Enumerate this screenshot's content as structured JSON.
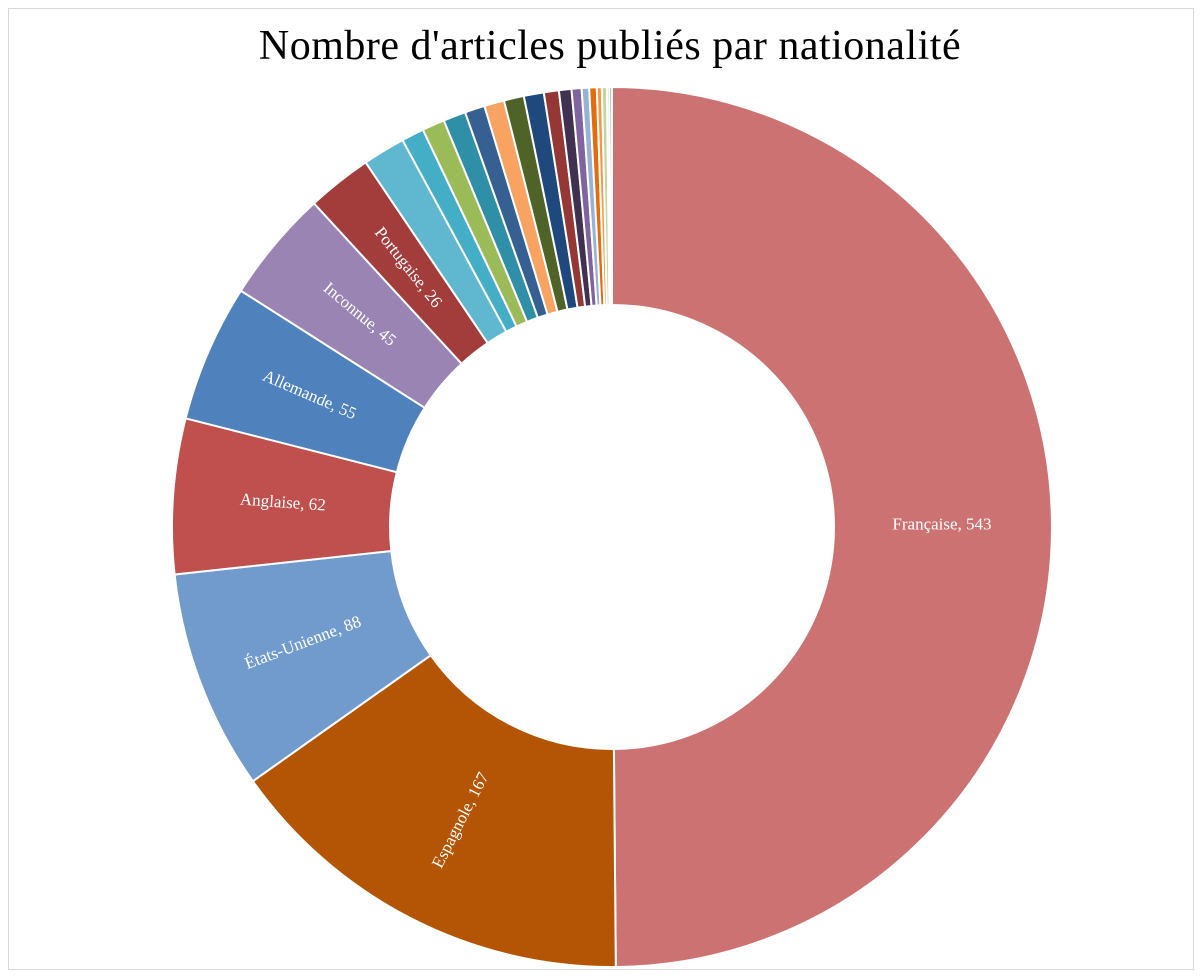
{
  "chart_data": {
    "type": "pie",
    "title": "Nombre d'articles publiés par nationalité",
    "donut": true,
    "direction": "clockwise",
    "start_angle": "top",
    "slices": [
      {
        "label": "Française",
        "value": 543,
        "color": "#cd7272",
        "show_label": true
      },
      {
        "label": "Espagnole",
        "value": 167,
        "color": "#b35504",
        "show_label": true
      },
      {
        "label": "États-Unienne",
        "value": 88,
        "color": "#729bcd",
        "show_label": true
      },
      {
        "label": "Anglaise",
        "value": 62,
        "color": "#c0504d",
        "show_label": true
      },
      {
        "label": "Allemande",
        "value": 55,
        "color": "#4f81bd",
        "show_label": true
      },
      {
        "label": "Inconnue",
        "value": 45,
        "color": "#9a84b4",
        "show_label": true
      },
      {
        "label": "Portugaise",
        "value": 26,
        "color": "#a33d3c",
        "show_label": true
      },
      {
        "label": "",
        "value": 17,
        "color": "#5fb7d0",
        "show_label": false
      },
      {
        "label": "",
        "value": 9,
        "color": "#43aec6",
        "show_label": false
      },
      {
        "label": "",
        "value": 9,
        "color": "#9bbb59",
        "show_label": false
      },
      {
        "label": "",
        "value": 9,
        "color": "#2e8fa6",
        "show_label": false
      },
      {
        "label": "",
        "value": 8,
        "color": "#366092",
        "show_label": false
      },
      {
        "label": "",
        "value": 8,
        "color": "#f8a362",
        "show_label": false
      },
      {
        "label": "",
        "value": 8,
        "color": "#4f6228",
        "show_label": false
      },
      {
        "label": "",
        "value": 8,
        "color": "#1f497d",
        "show_label": false
      },
      {
        "label": "",
        "value": 6,
        "color": "#953735",
        "show_label": false
      },
      {
        "label": "",
        "value": 5,
        "color": "#403151",
        "show_label": false
      },
      {
        "label": "",
        "value": 4,
        "color": "#8064a2",
        "show_label": false
      },
      {
        "label": "",
        "value": 3,
        "color": "#95b3d7",
        "show_label": false
      },
      {
        "label": "",
        "value": 3,
        "color": "#e46c0a",
        "show_label": false
      },
      {
        "label": "",
        "value": 2,
        "color": "#f79646",
        "show_label": false
      },
      {
        "label": "",
        "value": 2,
        "color": "#c3d69b",
        "show_label": false
      },
      {
        "label": "",
        "value": 1,
        "color": "#b7dee8",
        "show_label": false
      },
      {
        "label": "",
        "value": 1,
        "color": "#77933c",
        "show_label": false
      }
    ]
  }
}
